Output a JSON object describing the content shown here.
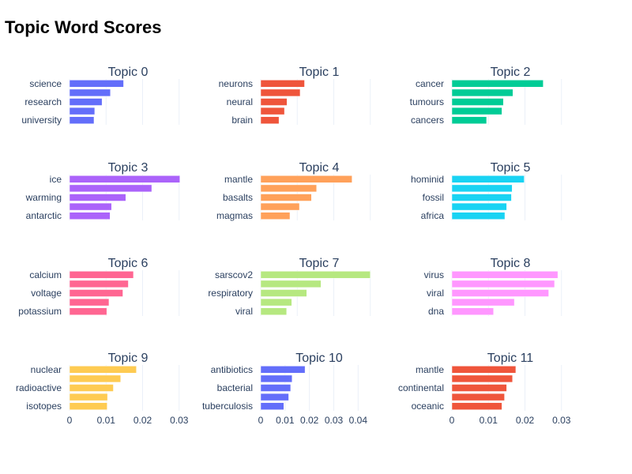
{
  "chart_data": {
    "type": "bar",
    "orientation": "horizontal",
    "title": "Topic Word Scores",
    "grid": true,
    "panels": [
      {
        "title": "Topic 0",
        "color": "#636efa",
        "xlim": [
          0,
          0.032
        ],
        "xticks": [],
        "labels": [
          "science",
          "",
          "research",
          "",
          "university"
        ],
        "values": [
          0.0148,
          0.0112,
          0.0089,
          0.0069,
          0.0067
        ]
      },
      {
        "title": "Topic 1",
        "color": "#ef553b",
        "xlim": [
          0,
          0.032
        ],
        "xticks": [],
        "labels": [
          "neurons",
          "",
          "neural",
          "",
          "brain"
        ],
        "values": [
          0.012,
          0.0108,
          0.0072,
          0.0065,
          0.005
        ]
      },
      {
        "title": "Topic 2",
        "color": "#00cc96",
        "xlim": [
          0,
          0.032
        ],
        "xticks": [],
        "labels": [
          "cancer",
          "",
          "tumours",
          "",
          "cancers"
        ],
        "values": [
          0.025,
          0.0167,
          0.0141,
          0.0137,
          0.0095
        ]
      },
      {
        "title": "Topic 3",
        "color": "#ab63fa",
        "xlim": [
          0,
          0.032
        ],
        "xticks": [],
        "labels": [
          "ice",
          "",
          "warming",
          "",
          "antarctic"
        ],
        "values": [
          0.0302,
          0.0225,
          0.0154,
          0.0115,
          0.0111
        ]
      },
      {
        "title": "Topic 4",
        "color": "#ffa15a",
        "xlim": [
          0,
          0.032
        ],
        "xticks": [],
        "labels": [
          "mantle",
          "",
          "basalts",
          "",
          "magmas"
        ],
        "values": [
          0.025,
          0.0153,
          0.0139,
          0.0106,
          0.008
        ]
      },
      {
        "title": "Topic 5",
        "color": "#19d3f3",
        "xlim": [
          0,
          0.032
        ],
        "xticks": [],
        "labels": [
          "hominid",
          "",
          "fossil",
          "",
          "africa"
        ],
        "values": [
          0.0198,
          0.0165,
          0.0163,
          0.015,
          0.0145
        ]
      },
      {
        "title": "Topic 6",
        "color": "#ff6692",
        "xlim": [
          0,
          0.032
        ],
        "xticks": [],
        "labels": [
          "calcium",
          "",
          "voltage",
          "",
          "potassium"
        ],
        "values": [
          0.0175,
          0.0161,
          0.0146,
          0.0108,
          0.0102
        ]
      },
      {
        "title": "Topic 7",
        "color": "#b6e880",
        "xlim": [
          0,
          0.032
        ],
        "xticks": [],
        "labels": [
          "sarscov2",
          "",
          "respiratory",
          "",
          "viral"
        ],
        "values": [
          0.03,
          0.0165,
          0.0126,
          0.0085,
          0.0071
        ]
      },
      {
        "title": "Topic 8",
        "color": "#ff97ff",
        "xlim": [
          0,
          0.032
        ],
        "xticks": [],
        "labels": [
          "virus",
          "",
          "viral",
          "",
          "dna"
        ],
        "values": [
          0.029,
          0.0281,
          0.0265,
          0.0171,
          0.0114
        ]
      },
      {
        "title": "Topic 9",
        "color": "#fecb52",
        "xlim": [
          0,
          0.032
        ],
        "xticks": [
          "0",
          "0.01",
          "0.02",
          "0.03"
        ],
        "xtick_values": [
          0,
          0.01,
          0.02,
          0.03
        ],
        "labels": [
          "nuclear",
          "",
          "radioactive",
          "",
          "isotopes"
        ],
        "values": [
          0.0183,
          0.014,
          0.012,
          0.0104,
          0.0103
        ]
      },
      {
        "title": "Topic 10",
        "color": "#636efa",
        "xlim": [
          0,
          0.048
        ],
        "xticks": [
          "0",
          "0.01",
          "0.02",
          "0.03",
          "0.04"
        ],
        "xtick_values": [
          0,
          0.01,
          0.02,
          0.03,
          0.04
        ],
        "labels": [
          "antibiotics",
          "",
          "bacterial",
          "",
          "tuberculosis"
        ],
        "values": [
          0.0182,
          0.0129,
          0.0123,
          0.0115,
          0.0095
        ]
      },
      {
        "title": "Topic 11",
        "color": "#ef553b",
        "xlim": [
          0,
          0.032
        ],
        "xticks": [
          "0",
          "0.01",
          "0.02",
          "0.03"
        ],
        "xtick_values": [
          0,
          0.01,
          0.02,
          0.03
        ],
        "labels": [
          "mantle",
          "",
          "continental",
          "",
          "oceanic"
        ],
        "values": [
          0.0175,
          0.0166,
          0.015,
          0.0144,
          0.0137
        ]
      }
    ]
  }
}
